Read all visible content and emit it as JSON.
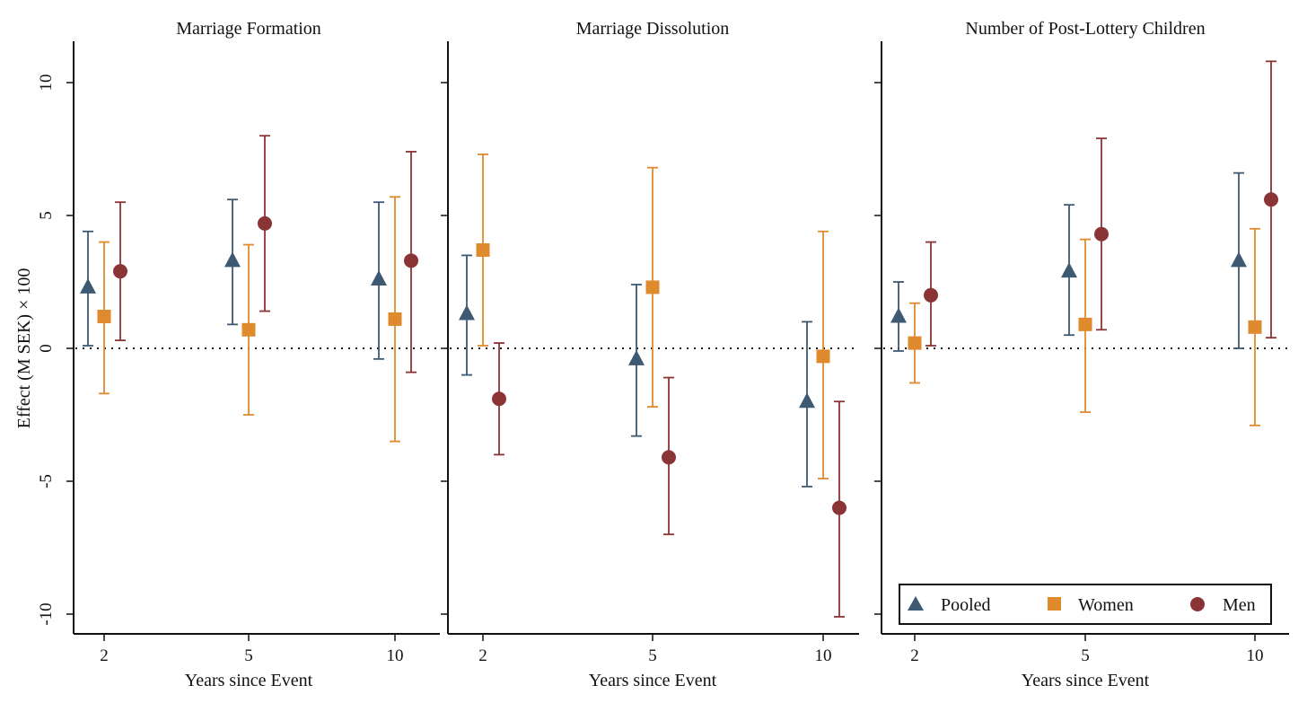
{
  "colors": {
    "pooled": "#3e5a73",
    "women": "#e08a2e",
    "men": "#8a3436",
    "axis": "#111111"
  },
  "y_axis_title": "Effect (M SEK) × 100",
  "legend": [
    {
      "key": "pooled",
      "label": "Pooled",
      "marker": "triangle"
    },
    {
      "key": "women",
      "label": "Women",
      "marker": "square"
    },
    {
      "key": "men",
      "label": "Men",
      "marker": "circle"
    }
  ],
  "chart_data": [
    {
      "type": "scatter",
      "title": "Marriage Formation",
      "xlabel": "Years since Event",
      "ylabel": "Effect (M SEK) × 100",
      "categories": [
        "2",
        "5",
        "10"
      ],
      "ylim": [
        -11,
        11
      ],
      "yticks": [
        "10",
        "5",
        "0",
        "-5",
        "-10"
      ],
      "reference_line": 0,
      "series": [
        {
          "name": "Pooled",
          "key": "pooled",
          "marker": "triangle",
          "values": [
            2.3,
            3.3,
            2.6
          ],
          "ci_low": [
            0.1,
            0.9,
            -0.4
          ],
          "ci_high": [
            4.4,
            5.6,
            5.5
          ]
        },
        {
          "name": "Women",
          "key": "women",
          "marker": "square",
          "values": [
            1.2,
            0.7,
            1.1
          ],
          "ci_low": [
            -1.7,
            -2.5,
            -3.5
          ],
          "ci_high": [
            4.0,
            3.9,
            5.7
          ]
        },
        {
          "name": "Men",
          "key": "men",
          "marker": "circle",
          "values": [
            2.9,
            4.7,
            3.3
          ],
          "ci_low": [
            0.3,
            1.4,
            -0.9
          ],
          "ci_high": [
            5.5,
            8.0,
            7.4
          ]
        }
      ]
    },
    {
      "type": "scatter",
      "title": "Marriage Dissolution",
      "xlabel": "Years since Event",
      "categories": [
        "2",
        "5",
        "10"
      ],
      "ylim": [
        -11,
        11
      ],
      "reference_line": 0,
      "series": [
        {
          "name": "Pooled",
          "key": "pooled",
          "marker": "triangle",
          "values": [
            1.3,
            -0.4,
            -2.0
          ],
          "ci_low": [
            -1.0,
            -3.3,
            -5.2
          ],
          "ci_high": [
            3.5,
            2.4,
            1.0
          ]
        },
        {
          "name": "Women",
          "key": "women",
          "marker": "square",
          "values": [
            3.7,
            2.3,
            -0.3
          ],
          "ci_low": [
            0.1,
            -2.2,
            -4.9
          ],
          "ci_high": [
            7.3,
            6.8,
            4.4
          ]
        },
        {
          "name": "Men",
          "key": "men",
          "marker": "circle",
          "values": [
            -1.9,
            -4.1,
            -6.0
          ],
          "ci_low": [
            -4.0,
            -7.0,
            -10.1
          ],
          "ci_high": [
            0.2,
            -1.1,
            -2.0
          ]
        }
      ]
    },
    {
      "type": "scatter",
      "title": "Number of Post-Lottery Children",
      "xlabel": "Years since Event",
      "categories": [
        "2",
        "5",
        "10"
      ],
      "ylim": [
        -11,
        11
      ],
      "reference_line": 0,
      "series": [
        {
          "name": "Pooled",
          "key": "pooled",
          "marker": "triangle",
          "values": [
            1.2,
            2.9,
            3.3
          ],
          "ci_low": [
            -0.1,
            0.5,
            0.0
          ],
          "ci_high": [
            2.5,
            5.4,
            6.6
          ]
        },
        {
          "name": "Women",
          "key": "women",
          "marker": "square",
          "values": [
            0.2,
            0.9,
            0.8
          ],
          "ci_low": [
            -1.3,
            -2.4,
            -2.9
          ],
          "ci_high": [
            1.7,
            4.1,
            4.5
          ]
        },
        {
          "name": "Men",
          "key": "men",
          "marker": "circle",
          "values": [
            2.0,
            4.3,
            5.6
          ],
          "ci_low": [
            0.1,
            0.7,
            0.4
          ],
          "ci_high": [
            4.0,
            7.9,
            10.8
          ]
        }
      ]
    }
  ]
}
